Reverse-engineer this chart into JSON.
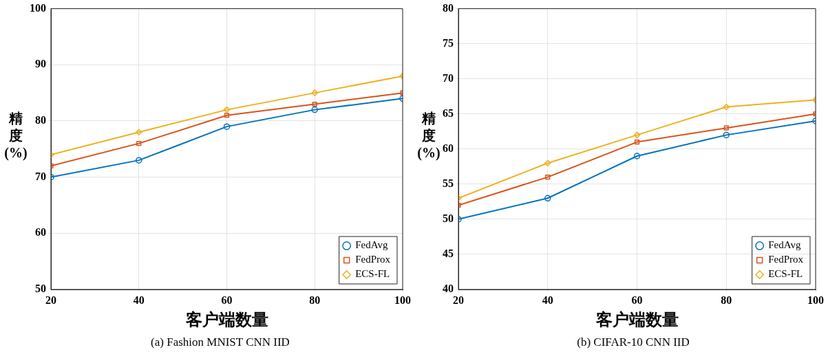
{
  "chart_data": [
    {
      "type": "line",
      "xlabel": "客户端数量",
      "ylabel": "精度 (%)",
      "x": [
        20,
        40,
        60,
        80,
        100
      ],
      "xlim": [
        20,
        100
      ],
      "xticks": [
        20,
        40,
        60,
        80,
        100
      ],
      "ylim": [
        50,
        100
      ],
      "yticks": [
        50,
        60,
        70,
        80,
        90,
        100
      ],
      "grid": true,
      "legend": "bottom right",
      "line_style": "solid",
      "annotations": [
        "(a) Fashion MNIST CNN IID"
      ],
      "series": [
        {
          "name": "FedAvg",
          "color": "#0072bd",
          "marker": "circle",
          "values": [
            70,
            73,
            79,
            82,
            84
          ]
        },
        {
          "name": "FedProx",
          "color": "#d95319",
          "marker": "square",
          "values": [
            72,
            76,
            81,
            83,
            85
          ]
        },
        {
          "name": "ECS-FL",
          "color": "#edb120",
          "marker": "diamond",
          "values": [
            74,
            78,
            82,
            85,
            88
          ]
        }
      ]
    },
    {
      "type": "line",
      "xlabel": "客户端数量",
      "ylabel": "精度 (%)",
      "x": [
        20,
        40,
        60,
        80,
        100
      ],
      "xlim": [
        20,
        100
      ],
      "xticks": [
        20,
        40,
        60,
        80,
        100
      ],
      "ylim": [
        40,
        80
      ],
      "yticks": [
        40,
        45,
        50,
        55,
        60,
        65,
        70,
        75,
        80
      ],
      "grid": true,
      "legend": "bottom right",
      "line_style": "solid",
      "annotations": [
        "(b) CIFAR-10 CNN IID"
      ],
      "series": [
        {
          "name": "FedAvg",
          "color": "#0072bd",
          "marker": "circle",
          "values": [
            50,
            53,
            59,
            62,
            64
          ]
        },
        {
          "name": "FedProx",
          "color": "#d95319",
          "marker": "square",
          "values": [
            52,
            56,
            61,
            63,
            65
          ]
        },
        {
          "name": "ECS-FL",
          "color": "#edb120",
          "marker": "diamond",
          "values": [
            53,
            58,
            62,
            66,
            67
          ]
        }
      ]
    }
  ]
}
